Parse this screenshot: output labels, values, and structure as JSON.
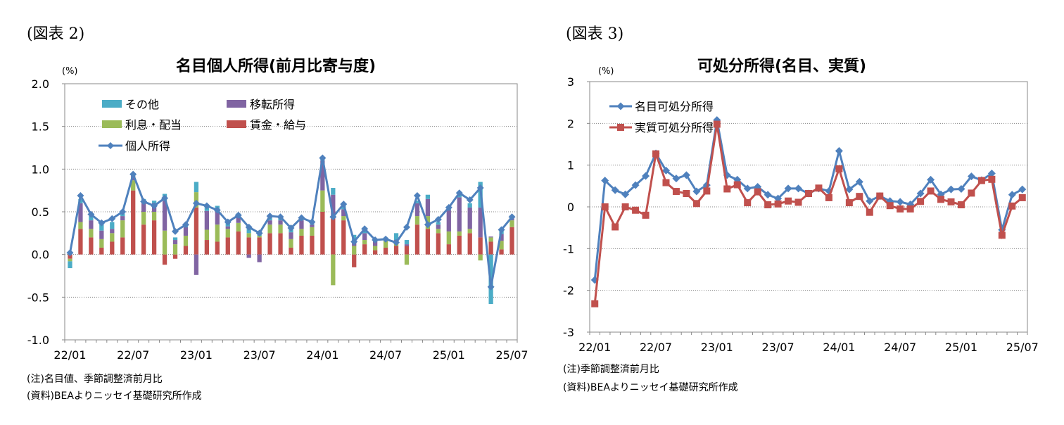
{
  "figure2": {
    "label": "(図表 2)",
    "unit": "(%)",
    "note": "(注)名目値、季節調整済前月比",
    "source": "(資料)BEAよりニッセイ基礎研究所作成"
  },
  "figure3": {
    "label": "(図表 3)",
    "unit": "(%)",
    "note": "(注)季節調整済前月比",
    "source": "(資料)BEAよりニッセイ基礎研究所作成"
  },
  "chart_data": [
    {
      "type": "bar",
      "stacked": true,
      "title": "名目個人所得(前月比寄与度)",
      "ylabel": "(%)",
      "ylim": [
        -1.0,
        2.0
      ],
      "yticks": [
        "2.0",
        "1.5",
        "1.0",
        "0.5",
        "0.0",
        "-0.5",
        "-1.0"
      ],
      "xtick_labels": [
        "22/01",
        "22/07",
        "23/01",
        "23/07",
        "24/01",
        "24/07",
        "25/01",
        "25/07"
      ],
      "grid": true,
      "legend_position": "top-left",
      "colors": {
        "その他": "#4bacc6",
        "移転所得": "#8064a2",
        "利息・配当": "#9bbb59",
        "賃金・給与": "#c0504d",
        "個人所得": "#4f81bd"
      },
      "categories": [
        "22/01",
        "22/02",
        "22/03",
        "22/04",
        "22/05",
        "22/06",
        "22/07",
        "22/08",
        "22/09",
        "22/10",
        "22/11",
        "22/12",
        "23/01",
        "23/02",
        "23/03",
        "23/04",
        "23/05",
        "23/06",
        "23/07",
        "23/08",
        "23/09",
        "23/10",
        "23/11",
        "23/12",
        "24/01",
        "24/02",
        "24/03",
        "24/04",
        "24/05",
        "24/06",
        "24/07",
        "24/08",
        "24/09",
        "24/10",
        "24/11",
        "24/12",
        "25/01",
        "25/02",
        "25/03",
        "25/04",
        "25/05",
        "25/06",
        "25/07"
      ],
      "series": [
        {
          "name": "賃金・給与",
          "kind": "bar",
          "values": [
            -0.05,
            0.3,
            0.2,
            0.08,
            0.15,
            0.2,
            0.75,
            0.35,
            0.4,
            -0.12,
            -0.05,
            0.1,
            0.55,
            0.17,
            0.15,
            0.2,
            0.27,
            0.2,
            0.2,
            0.25,
            0.25,
            0.08,
            0.22,
            0.22,
            0.5,
            0.45,
            0.4,
            -0.15,
            0.12,
            0.05,
            0.08,
            0.1,
            0.1,
            0.35,
            0.3,
            0.25,
            0.12,
            0.22,
            0.25,
            0.2,
            0.15,
            0.06,
            0.32
          ]
        },
        {
          "name": "利息・配当",
          "kind": "bar",
          "values": [
            -0.03,
            0.08,
            0.1,
            0.1,
            0.1,
            0.2,
            0.12,
            0.15,
            0.1,
            0.28,
            0.12,
            0.12,
            0.18,
            0.12,
            0.2,
            0.1,
            0.1,
            0.05,
            0.02,
            0.1,
            0.1,
            0.1,
            0.08,
            0.1,
            0.25,
            -0.36,
            0.05,
            0.1,
            0.05,
            0.05,
            0.08,
            0.05,
            -0.12,
            0.1,
            0.15,
            0.05,
            0.15,
            0.05,
            0.05,
            -0.07,
            0.05,
            0.1,
            0.08
          ]
        },
        {
          "name": "移転所得",
          "kind": "bar",
          "values": [
            0.02,
            0.22,
            0.1,
            0.1,
            0.05,
            0.05,
            0.05,
            0.1,
            0.1,
            0.35,
            0.05,
            0.1,
            -0.24,
            0.22,
            0.17,
            0.03,
            0.08,
            -0.04,
            -0.09,
            0.05,
            0.05,
            0.08,
            0.1,
            0.03,
            0.35,
            0.25,
            0.08,
            0.05,
            0.08,
            0.05,
            0.02,
            0.02,
            0.02,
            0.15,
            0.2,
            0.05,
            0.25,
            0.4,
            0.25,
            0.35,
            0.01,
            0.08,
            0.04
          ]
        },
        {
          "name": "その他",
          "kind": "bar",
          "values": [
            -0.08,
            0.05,
            0.05,
            0.08,
            0.08,
            0.03,
            0.02,
            0.05,
            0.03,
            0.08,
            0.03,
            0.03,
            0.12,
            0.05,
            0.05,
            0.05,
            0.03,
            0.05,
            0.05,
            0.05,
            0.03,
            0.05,
            0.03,
            0.03,
            0.03,
            0.08,
            0.05,
            0.08,
            0.05,
            0.03,
            0.02,
            0.08,
            0.05,
            0.03,
            0.05,
            0.03,
            0.05,
            0.05,
            0.05,
            0.3,
            -0.58,
            0.05,
            0.02
          ]
        },
        {
          "name": "個人所得",
          "kind": "line",
          "values": [
            0.02,
            0.69,
            0.47,
            0.37,
            0.42,
            0.5,
            0.94,
            0.62,
            0.57,
            0.66,
            0.27,
            0.35,
            0.6,
            0.57,
            0.52,
            0.38,
            0.46,
            0.32,
            0.25,
            0.45,
            0.44,
            0.31,
            0.43,
            0.38,
            1.13,
            0.44,
            0.59,
            0.15,
            0.3,
            0.17,
            0.18,
            0.14,
            0.32,
            0.69,
            0.35,
            0.41,
            0.55,
            0.72,
            0.64,
            0.78,
            -0.38,
            0.29,
            0.44
          ]
        }
      ]
    },
    {
      "type": "line",
      "title": "可処分所得(名目、実質)",
      "ylabel": "(%)",
      "ylim": [
        -3,
        3
      ],
      "yticks": [
        "3",
        "2",
        "1",
        "0",
        "-1",
        "-2",
        "-3"
      ],
      "xtick_labels": [
        "22/01",
        "22/07",
        "23/01",
        "23/07",
        "24/01",
        "24/07",
        "25/01",
        "25/07"
      ],
      "grid": true,
      "legend_position": "top-left",
      "colors": {
        "名目可処分所得": "#4f81bd",
        "実質可処分所得": "#c0504d"
      },
      "categories": [
        "22/01",
        "22/02",
        "22/03",
        "22/04",
        "22/05",
        "22/06",
        "22/07",
        "22/08",
        "22/09",
        "22/10",
        "22/11",
        "22/12",
        "23/01",
        "23/02",
        "23/03",
        "23/04",
        "23/05",
        "23/06",
        "23/07",
        "23/08",
        "23/09",
        "23/10",
        "23/11",
        "23/12",
        "24/01",
        "24/02",
        "24/03",
        "24/04",
        "24/05",
        "24/06",
        "24/07",
        "24/08",
        "24/09",
        "24/10",
        "24/11",
        "24/12",
        "25/01",
        "25/02",
        "25/03",
        "25/04",
        "25/05",
        "25/06",
        "25/07"
      ],
      "series": [
        {
          "name": "名目可処分所得",
          "marker": "diamond",
          "values": [
            -1.75,
            0.63,
            0.4,
            0.3,
            0.52,
            0.74,
            1.28,
            0.87,
            0.68,
            0.76,
            0.37,
            0.52,
            2.08,
            0.76,
            0.65,
            0.44,
            0.48,
            0.29,
            0.2,
            0.44,
            0.44,
            0.32,
            0.44,
            0.38,
            1.34,
            0.42,
            0.6,
            0.14,
            0.26,
            0.14,
            0.12,
            0.06,
            0.32,
            0.65,
            0.3,
            0.42,
            0.43,
            0.73,
            0.64,
            0.8,
            -0.55,
            0.29,
            0.42
          ]
        },
        {
          "name": "実質可処分所得",
          "marker": "square",
          "values": [
            -2.32,
            0.0,
            -0.48,
            0.0,
            -0.08,
            -0.2,
            1.27,
            0.58,
            0.37,
            0.32,
            0.08,
            0.38,
            1.98,
            0.43,
            0.53,
            0.1,
            0.36,
            0.05,
            0.07,
            0.14,
            0.11,
            0.32,
            0.45,
            0.22,
            0.91,
            0.1,
            0.25,
            -0.13,
            0.26,
            0.03,
            -0.05,
            -0.05,
            0.13,
            0.38,
            0.18,
            0.12,
            0.05,
            0.33,
            0.63,
            0.66,
            -0.68,
            0.02,
            0.22
          ]
        }
      ]
    }
  ]
}
